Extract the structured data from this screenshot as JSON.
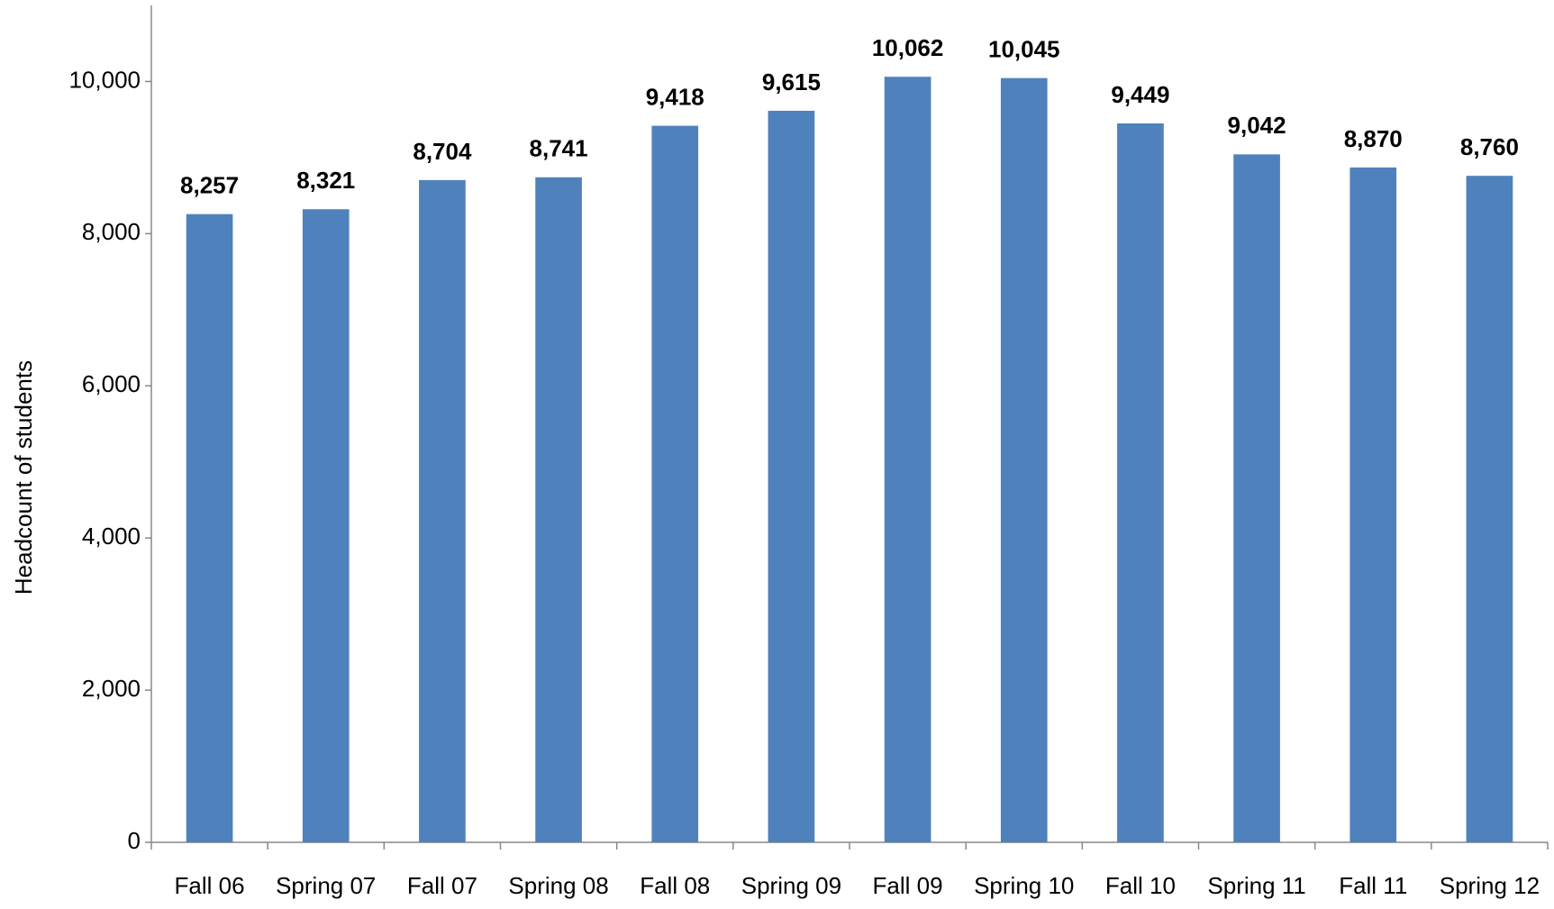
{
  "chart_data": {
    "type": "bar",
    "y_label": "Headcount of students",
    "categories": [
      "Fall 06",
      "Spring 07",
      "Fall 07",
      "Spring 08",
      "Fall 08",
      "Spring 09",
      "Fall 09",
      "Spring 10",
      "Fall 10",
      "Spring 11",
      "Fall 11",
      "Spring 12"
    ],
    "values": [
      8257,
      8321,
      8704,
      8741,
      9418,
      9615,
      10062,
      10045,
      9449,
      9042,
      8870,
      8760
    ],
    "value_labels": [
      "8,257",
      "8,321",
      "8,704",
      "8,741",
      "9,418",
      "9,615",
      "10,062",
      "10,045",
      "9,449",
      "9,042",
      "8,870",
      "8,760"
    ],
    "color": "#4f81bd",
    "ylim": [
      0,
      11000
    ],
    "yticks": [
      0,
      {
        "value": 2000,
        "label": "2,000"
      },
      {
        "value": 4000,
        "label": "4,000"
      },
      {
        "value": 6000,
        "label": "6,000"
      },
      {
        "value": 8000,
        "label": "8,000"
      },
      {
        "value": 10000,
        "label": "10,000"
      }
    ],
    "grid": false
  }
}
